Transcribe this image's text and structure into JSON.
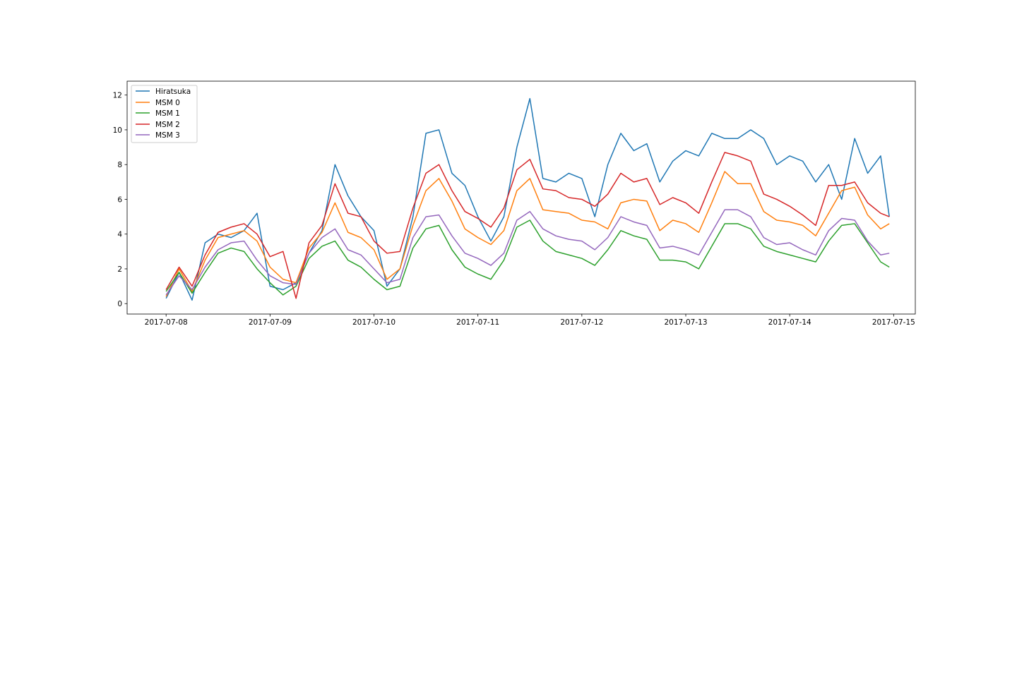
{
  "chart_data": {
    "type": "line",
    "title": "",
    "xlabel": "",
    "ylabel": "",
    "x_axis": {
      "type": "date",
      "range": [
        "2017-07-07T15:00",
        "2017-07-15T05:00"
      ],
      "ticks": [
        "2017-07-08",
        "2017-07-09",
        "2017-07-10",
        "2017-07-11",
        "2017-07-12",
        "2017-07-13",
        "2017-07-14",
        "2017-07-15"
      ]
    },
    "y_axis": {
      "range": [
        -0.6,
        12.8
      ],
      "ticks": [
        0,
        2,
        4,
        6,
        8,
        10,
        12
      ]
    },
    "grid": false,
    "legend_position": "top-left",
    "x": [
      "2017-07-08 00:00",
      "2017-07-08 03:00",
      "2017-07-08 06:00",
      "2017-07-08 09:00",
      "2017-07-08 12:00",
      "2017-07-08 15:00",
      "2017-07-08 18:00",
      "2017-07-08 21:00",
      "2017-07-09 00:00",
      "2017-07-09 03:00",
      "2017-07-09 06:00",
      "2017-07-09 09:00",
      "2017-07-09 12:00",
      "2017-07-09 15:00",
      "2017-07-09 18:00",
      "2017-07-09 21:00",
      "2017-07-10 00:00",
      "2017-07-10 03:00",
      "2017-07-10 06:00",
      "2017-07-10 09:00",
      "2017-07-10 12:00",
      "2017-07-10 15:00",
      "2017-07-10 18:00",
      "2017-07-10 21:00",
      "2017-07-11 00:00",
      "2017-07-11 03:00",
      "2017-07-11 06:00",
      "2017-07-11 09:00",
      "2017-07-11 12:00",
      "2017-07-11 15:00",
      "2017-07-11 18:00",
      "2017-07-11 21:00",
      "2017-07-12 00:00",
      "2017-07-12 03:00",
      "2017-07-12 06:00",
      "2017-07-12 09:00",
      "2017-07-12 12:00",
      "2017-07-12 15:00",
      "2017-07-12 18:00",
      "2017-07-12 21:00",
      "2017-07-13 00:00",
      "2017-07-13 03:00",
      "2017-07-13 06:00",
      "2017-07-13 09:00",
      "2017-07-13 12:00",
      "2017-07-13 15:00",
      "2017-07-13 18:00",
      "2017-07-13 21:00",
      "2017-07-14 00:00",
      "2017-07-14 03:00",
      "2017-07-14 06:00",
      "2017-07-14 09:00",
      "2017-07-14 12:00",
      "2017-07-14 15:00",
      "2017-07-14 18:00",
      "2017-07-14 21:00",
      "2017-07-14 23:00"
    ],
    "series": [
      {
        "name": "Hiratsuka",
        "color": "#1f77b4",
        "values": [
          0.3,
          1.8,
          0.2,
          3.5,
          4.0,
          3.8,
          4.2,
          5.2,
          1.0,
          0.8,
          1.2,
          2.9,
          4.2,
          8.0,
          6.2,
          5.0,
          4.2,
          1.0,
          2.0,
          5.0,
          9.8,
          10.0,
          7.5,
          6.8,
          5.0,
          3.6,
          5.0,
          9.0,
          11.8,
          7.2,
          7.0,
          7.5,
          7.2,
          5.0,
          8.0,
          9.8,
          8.8,
          9.2,
          7.0,
          8.2,
          8.8,
          8.5,
          9.8,
          9.5,
          9.5,
          10.0,
          9.5,
          8.0,
          8.5,
          8.2,
          7.0,
          8.0,
          6.0,
          9.5,
          7.5,
          8.5,
          5.0
        ]
      },
      {
        "name": "MSM 0",
        "color": "#ff7f0e",
        "values": [
          0.4,
          2.0,
          0.7,
          2.5,
          3.8,
          4.0,
          4.2,
          3.6,
          2.1,
          1.4,
          1.2,
          3.2,
          4.1,
          5.8,
          4.1,
          3.8,
          3.1,
          1.4,
          2.0,
          4.5,
          6.5,
          7.2,
          5.9,
          4.3,
          3.8,
          3.4,
          4.2,
          6.5,
          7.2,
          5.4,
          5.3,
          5.2,
          4.8,
          4.7,
          4.3,
          5.8,
          6.0,
          5.9,
          4.2,
          4.8,
          4.6,
          4.1,
          5.8,
          7.6,
          6.9,
          6.9,
          5.3,
          4.8,
          4.7,
          4.5,
          3.9,
          5.2,
          6.5,
          6.7,
          5.1,
          4.3,
          4.6
        ]
      },
      {
        "name": "MSM 1",
        "color": "#2ca02c",
        "values": [
          0.7,
          1.8,
          0.6,
          1.8,
          2.9,
          3.2,
          3.0,
          2.0,
          1.2,
          0.5,
          1.0,
          2.6,
          3.3,
          3.6,
          2.5,
          2.1,
          1.4,
          0.8,
          1.0,
          3.2,
          4.3,
          4.5,
          3.1,
          2.1,
          1.7,
          1.4,
          2.5,
          4.4,
          4.8,
          3.6,
          3.0,
          2.8,
          2.6,
          2.2,
          3.1,
          4.2,
          3.9,
          3.7,
          2.5,
          2.5,
          2.4,
          2.0,
          3.3,
          4.6,
          4.6,
          4.3,
          3.3,
          3.0,
          2.8,
          2.6,
          2.4,
          3.6,
          4.5,
          4.6,
          3.5,
          2.4,
          2.1
        ]
      },
      {
        "name": "MSM 3",
        "color": "#9467bd",
        "values": [
          0.5,
          1.6,
          0.8,
          2.1,
          3.1,
          3.5,
          3.6,
          2.5,
          1.6,
          1.2,
          1.1,
          2.9,
          3.8,
          4.3,
          3.1,
          2.8,
          2.0,
          1.2,
          1.4,
          3.8,
          5.0,
          5.1,
          3.9,
          2.9,
          2.6,
          2.2,
          2.9,
          4.8,
          5.3,
          4.3,
          3.9,
          3.7,
          3.6,
          3.1,
          3.8,
          5.0,
          4.7,
          4.5,
          3.2,
          3.3,
          3.1,
          2.8,
          4.1,
          5.4,
          5.4,
          5.0,
          3.8,
          3.4,
          3.5,
          3.1,
          2.8,
          4.2,
          4.9,
          4.8,
          3.6,
          2.8,
          2.9
        ]
      },
      {
        "name": "MSM 2",
        "color": "#d62728",
        "values": [
          0.8,
          2.1,
          1.0,
          2.8,
          4.1,
          4.4,
          4.6,
          4.0,
          2.7,
          3.0,
          0.3,
          3.5,
          4.5,
          6.9,
          5.2,
          5.0,
          3.6,
          2.9,
          3.0,
          5.5,
          7.5,
          8.0,
          6.5,
          5.3,
          4.9,
          4.4,
          5.5,
          7.7,
          8.3,
          6.6,
          6.5,
          6.1,
          6.0,
          5.6,
          6.3,
          7.5,
          7.0,
          7.2,
          5.7,
          6.1,
          5.8,
          5.2,
          7.0,
          8.7,
          8.5,
          8.2,
          6.3,
          6.0,
          5.6,
          5.1,
          4.5,
          6.8,
          6.8,
          7.0,
          5.8,
          5.2,
          5.0
        ]
      }
    ]
  },
  "legend": {
    "items": [
      {
        "label": "Hiratsuka",
        "color": "#1f77b4"
      },
      {
        "label": "MSM 0",
        "color": "#ff7f0e"
      },
      {
        "label": "MSM 1",
        "color": "#2ca02c"
      },
      {
        "label": "MSM 2",
        "color": "#d62728"
      },
      {
        "label": "MSM 3",
        "color": "#9467bd"
      }
    ]
  }
}
